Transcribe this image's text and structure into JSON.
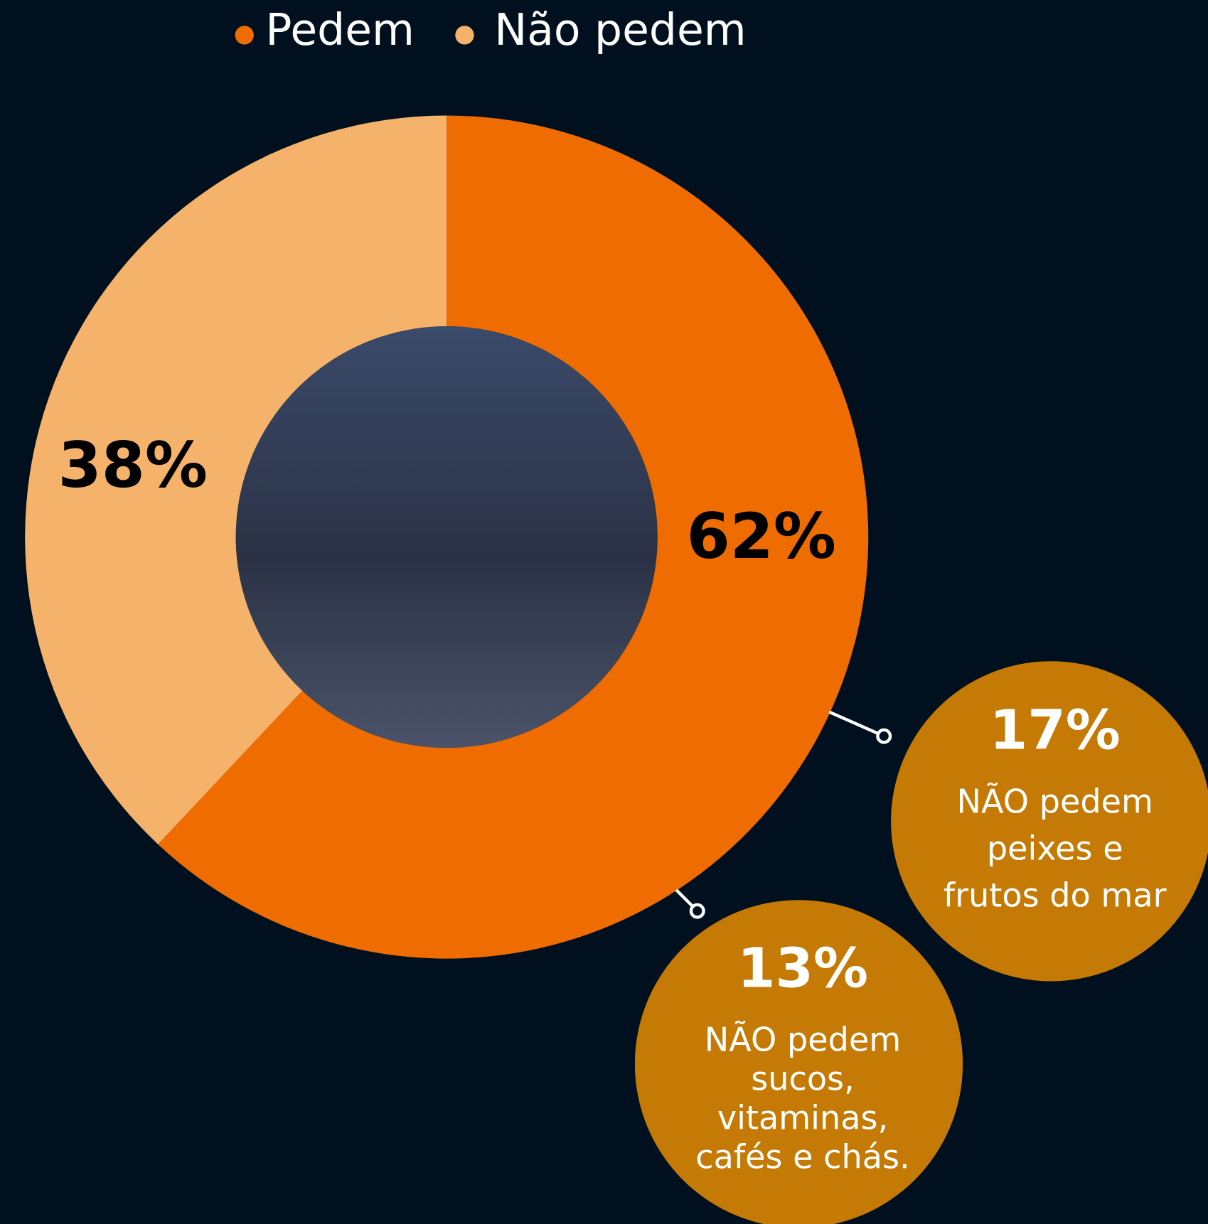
{
  "chart_data": {
    "type": "donut",
    "categories": [
      "Pedem",
      "Não pedem"
    ],
    "values": [
      62,
      38
    ],
    "value_labels": [
      "62%",
      "38%"
    ],
    "colors": [
      "#ef6c00",
      "#f5b26b"
    ],
    "annotations": [
      {
        "label": "17%",
        "text": [
          "NÃO pedem",
          "peixes e",
          "frutos do mar"
        ]
      },
      {
        "label": "13%",
        "text": [
          "NÃO pedem",
          "sucos,",
          "vitaminas,",
          "cafés e chás."
        ]
      }
    ]
  }
}
